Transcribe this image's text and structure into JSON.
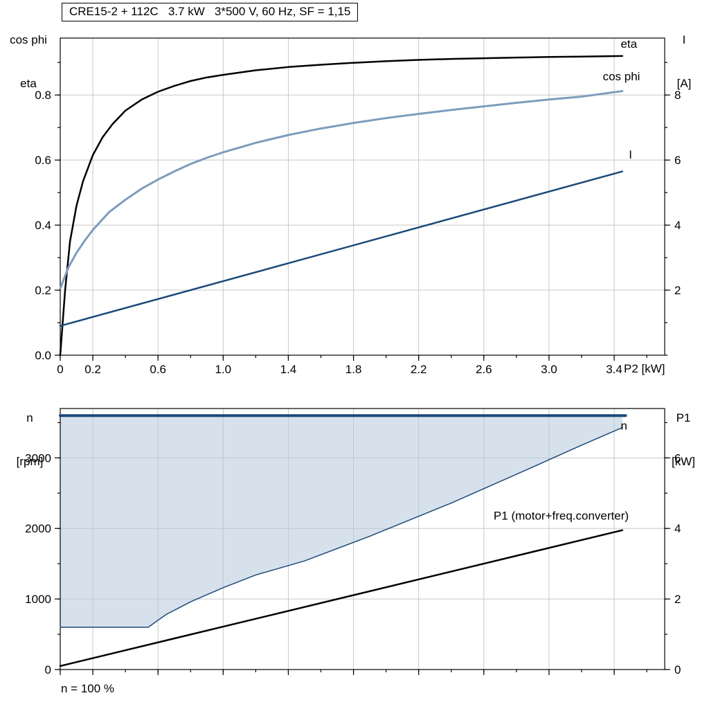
{
  "labels": {
    "top_left_line1": "cos phi",
    "top_left_line2": "eta",
    "top_right_line1": "I",
    "top_right_line2": "[A]",
    "x_axis_label": "P2 [kW]",
    "bottom_left_line1": "n",
    "bottom_left_line2": "[rpm]",
    "bottom_right_line1": "P1",
    "bottom_right_line2": "[kW]",
    "footnote": "n = 100 %"
  },
  "colors": {
    "black": "#000000",
    "steel_blue": "#7d9cbd",
    "dark_blue": "#1b4a78",
    "area_fill": "#b7c9dd",
    "grid": "#c8c8c8"
  },
  "chart_data": [
    {
      "name": "top",
      "type": "line",
      "title": "CRE15-2 + 112C   3.7 kW   3*500 V, 60 Hz, SF = 1,15",
      "x": {
        "label": "P2 [kW]",
        "range": [
          0,
          3.71
        ],
        "major": [
          0,
          0.2,
          0.6,
          1.0,
          1.4,
          1.8,
          2.2,
          2.6,
          3.0,
          3.4
        ],
        "labels": [
          "0",
          "0.2",
          "0.6",
          "1.0",
          "1.4",
          "1.8",
          "2.2",
          "2.6",
          "3.0",
          "3.4"
        ],
        "minor_step": 0.2,
        "grid": [
          0.2,
          0.6,
          1.0,
          1.4,
          1.8,
          2.2,
          2.6,
          3.0,
          3.4
        ]
      },
      "y_left": {
        "label": "cos phi / eta",
        "range": [
          0,
          0.975
        ],
        "major": [
          0,
          0.2,
          0.4,
          0.6,
          0.8
        ],
        "labels": [
          "0.0",
          "0.2",
          "0.4",
          "0.6",
          "0.8"
        ],
        "minor_step": 0.1,
        "grid": [
          0.2,
          0.4,
          0.6,
          0.8
        ]
      },
      "y_right": {
        "label": "I [A]",
        "range": [
          0,
          9.75
        ],
        "major": [
          2,
          4,
          6,
          8
        ],
        "labels": [
          "2",
          "4",
          "6",
          "8"
        ],
        "minor_step": 1
      },
      "series": [
        {
          "name": "eta",
          "axis": "left",
          "color": "#000000",
          "width": 2.5,
          "label": {
            "text": "eta",
            "x": 3.44,
            "y": 0.945,
            "color": "#000000"
          },
          "points": [
            [
              0,
              0
            ],
            [
              0.03,
              0.2
            ],
            [
              0.06,
              0.35
            ],
            [
              0.1,
              0.46
            ],
            [
              0.14,
              0.535
            ],
            [
              0.2,
              0.615
            ],
            [
              0.26,
              0.67
            ],
            [
              0.32,
              0.71
            ],
            [
              0.4,
              0.752
            ],
            [
              0.5,
              0.786
            ],
            [
              0.6,
              0.81
            ],
            [
              0.7,
              0.828
            ],
            [
              0.8,
              0.843
            ],
            [
              0.9,
              0.854
            ],
            [
              1.0,
              0.862
            ],
            [
              1.2,
              0.876
            ],
            [
              1.4,
              0.886
            ],
            [
              1.6,
              0.893
            ],
            [
              1.8,
              0.899
            ],
            [
              2.0,
              0.904
            ],
            [
              2.2,
              0.908
            ],
            [
              2.4,
              0.911
            ],
            [
              2.6,
              0.913
            ],
            [
              2.8,
              0.915
            ],
            [
              3.0,
              0.917
            ],
            [
              3.2,
              0.918
            ],
            [
              3.45,
              0.92
            ]
          ]
        },
        {
          "name": "cos-phi",
          "axis": "left",
          "color": "#7d9cbd",
          "width": 3,
          "label": {
            "text": "cos phi",
            "x": 3.33,
            "y": 0.845,
            "color": "#7d9cbd"
          },
          "points": [
            [
              0,
              0.205
            ],
            [
              0.05,
              0.27
            ],
            [
              0.1,
              0.315
            ],
            [
              0.15,
              0.352
            ],
            [
              0.2,
              0.385
            ],
            [
              0.3,
              0.44
            ],
            [
              0.4,
              0.478
            ],
            [
              0.5,
              0.512
            ],
            [
              0.6,
              0.54
            ],
            [
              0.7,
              0.565
            ],
            [
              0.8,
              0.588
            ],
            [
              0.9,
              0.607
            ],
            [
              1.0,
              0.624
            ],
            [
              1.2,
              0.653
            ],
            [
              1.4,
              0.677
            ],
            [
              1.6,
              0.697
            ],
            [
              1.8,
              0.714
            ],
            [
              2.0,
              0.729
            ],
            [
              2.2,
              0.742
            ],
            [
              2.4,
              0.754
            ],
            [
              2.6,
              0.765
            ],
            [
              2.8,
              0.776
            ],
            [
              3.0,
              0.786
            ],
            [
              3.2,
              0.795
            ],
            [
              3.45,
              0.812
            ]
          ]
        },
        {
          "name": "current",
          "axis": "right",
          "color": "#1b4a78",
          "width": 2.5,
          "label": {
            "text": "I",
            "x": 3.49,
            "y": 6.05,
            "color": "#1b4a78"
          },
          "points": [
            [
              0,
              0.9
            ],
            [
              3.45,
              5.65
            ]
          ]
        }
      ]
    },
    {
      "name": "bottom",
      "type": "area",
      "x": {
        "range": [
          0,
          3.71
        ],
        "major": [
          0,
          0.2,
          0.6,
          1.0,
          1.4,
          1.8,
          2.2,
          2.6,
          3.0,
          3.4
        ],
        "minor_step": 0.2,
        "grid": [
          0.2,
          0.6,
          1.0,
          1.4,
          1.8,
          2.2,
          2.6,
          3.0,
          3.4
        ]
      },
      "y_left": {
        "label": "n [rpm]",
        "range": [
          0,
          3700
        ],
        "major": [
          0,
          1000,
          2000,
          3000
        ],
        "labels": [
          "0",
          "1000",
          "2000",
          "3000"
        ],
        "minor_step": 500,
        "grid": [
          1000,
          2000,
          3000
        ]
      },
      "y_right": {
        "label": "P1 [kW]",
        "range": [
          0,
          7.4
        ],
        "major": [
          0,
          2,
          4,
          6
        ],
        "labels": [
          "0",
          "2",
          "4",
          "6"
        ],
        "minor_step": 1
      },
      "series": [
        {
          "name": "speed-range",
          "type": "area",
          "axis": "left",
          "fill": "#b7c9dd",
          "opacity": 0.55,
          "upper": [
            [
              0,
              3600
            ],
            [
              3.45,
              3600
            ]
          ],
          "lower": [
            [
              0,
              600
            ],
            [
              0.54,
              600
            ],
            [
              0.65,
              780
            ],
            [
              0.8,
              960
            ],
            [
              1.0,
              1160
            ],
            [
              1.2,
              1340
            ],
            [
              1.5,
              1540
            ],
            [
              1.9,
              1890
            ],
            [
              2.4,
              2360
            ],
            [
              2.9,
              2870
            ],
            [
              3.2,
              3180
            ],
            [
              3.45,
              3430
            ]
          ]
        },
        {
          "name": "n-max",
          "axis": "left",
          "color": "#1b4a78",
          "width": 4,
          "label": {
            "text": "n",
            "x": 3.44,
            "y": 3400,
            "color": "#3f74ad"
          },
          "points": [
            [
              0,
              3600
            ],
            [
              3.47,
              3600
            ]
          ]
        },
        {
          "name": "n-min",
          "axis": "left",
          "color": "#1b4a78",
          "width": 1.5,
          "points": [
            [
              0,
              600
            ],
            [
              0.54,
              600
            ],
            [
              0.65,
              780
            ],
            [
              0.8,
              960
            ],
            [
              1.0,
              1160
            ],
            [
              1.2,
              1340
            ],
            [
              1.5,
              1540
            ],
            [
              1.9,
              1890
            ],
            [
              2.4,
              2360
            ],
            [
              2.9,
              2870
            ],
            [
              3.2,
              3180
            ],
            [
              3.45,
              3430
            ]
          ]
        },
        {
          "name": "p1",
          "axis": "right",
          "color": "#000000",
          "width": 2.5,
          "label": {
            "text": "P1 (motor+freq.converter)",
            "x": 2.66,
            "y": 4.25,
            "color": "#000000"
          },
          "points": [
            [
              0,
              0.1
            ],
            [
              3.45,
              3.95
            ]
          ]
        }
      ]
    }
  ]
}
